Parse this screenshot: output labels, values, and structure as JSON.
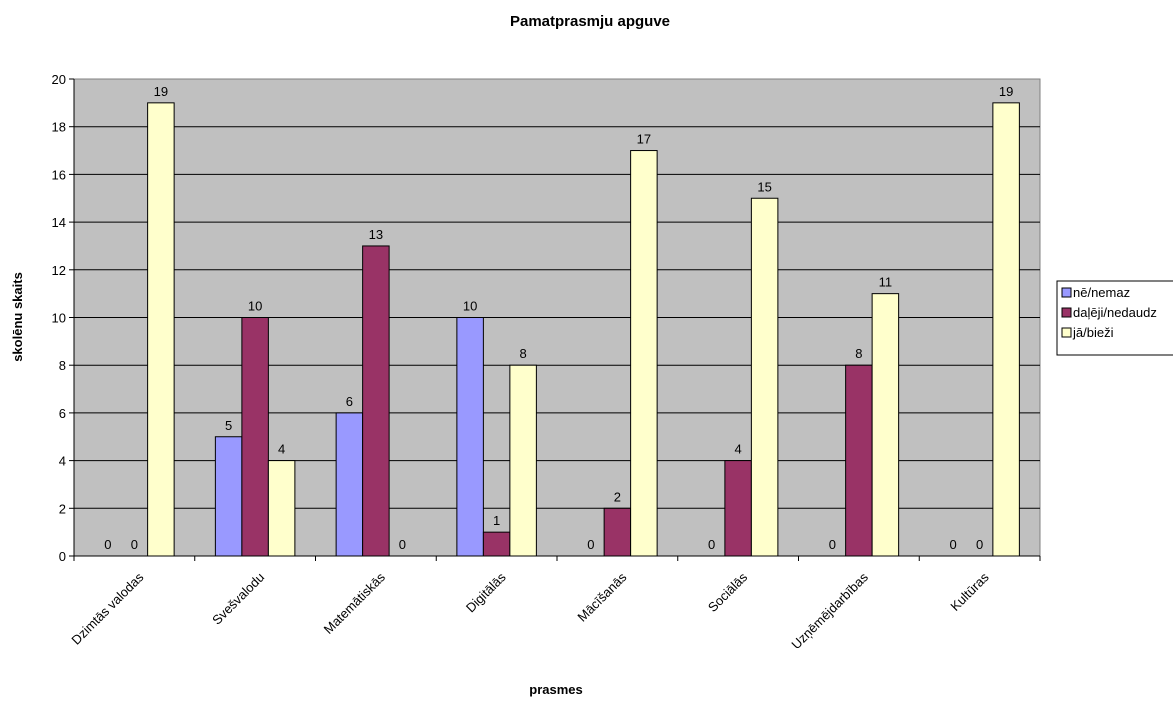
{
  "chart_data": {
    "type": "bar",
    "title": "Pamatprasmju apguve",
    "xlabel": "prasmes",
    "ylabel": "skolēnu skaits",
    "ylim": [
      0,
      20
    ],
    "ytick_step": 2,
    "grid": true,
    "legend_position": "right",
    "plot_background": "#c0c0c0",
    "categories": [
      "Dzimtās valodas",
      "Svešvalodu",
      "Matemātiskās",
      "Digitālās",
      "Mācīšanās",
      "Sociālās",
      "Uzņēmējdarbības",
      "Kultūras"
    ],
    "series": [
      {
        "name": "nē/nemaz",
        "color": "#9999ff",
        "values": [
          0,
          5,
          6,
          10,
          0,
          0,
          0,
          0
        ]
      },
      {
        "name": "daļēji/nedaudz",
        "color": "#993366",
        "values": [
          0,
          10,
          13,
          1,
          2,
          4,
          8,
          0
        ]
      },
      {
        "name": "jā/bieži",
        "color": "#ffffcc",
        "values": [
          19,
          4,
          0,
          8,
          17,
          15,
          11,
          19
        ]
      }
    ]
  }
}
